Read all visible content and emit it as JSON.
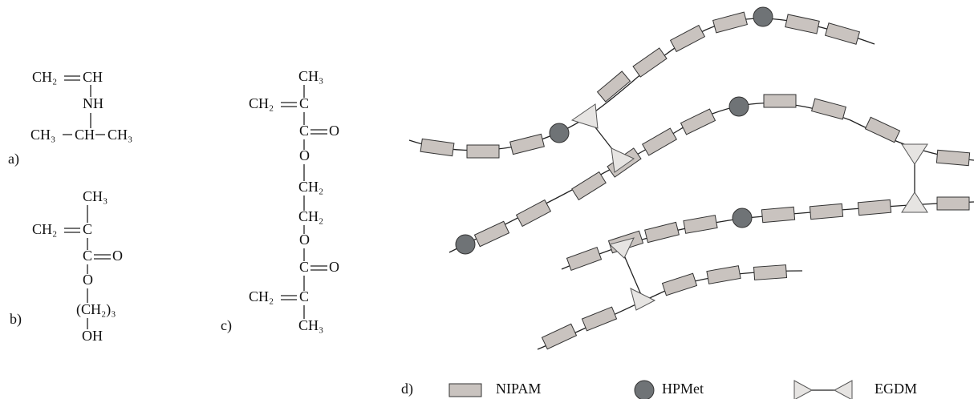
{
  "structure_a": {
    "label": "a)",
    "atoms": [
      "CH₂",
      "CH",
      "NH",
      "CH₃",
      "CH",
      "CH₃"
    ]
  },
  "structure_b": {
    "label": "b)",
    "atoms": [
      "CH₃",
      "CH₂",
      "C",
      "C",
      "O",
      "O",
      "(CH₂)₃",
      "OH"
    ]
  },
  "structure_c": {
    "label": "c)",
    "atoms": [
      "CH₃",
      "CH₂",
      "C",
      "C",
      "O",
      "O",
      "CH₂",
      "CH₂",
      "O",
      "C",
      "O",
      "CH₂",
      "C",
      "CH₃"
    ]
  },
  "legend": {
    "label": "d)",
    "items": [
      "NIPAM",
      "HPMet",
      "EGDM"
    ]
  }
}
